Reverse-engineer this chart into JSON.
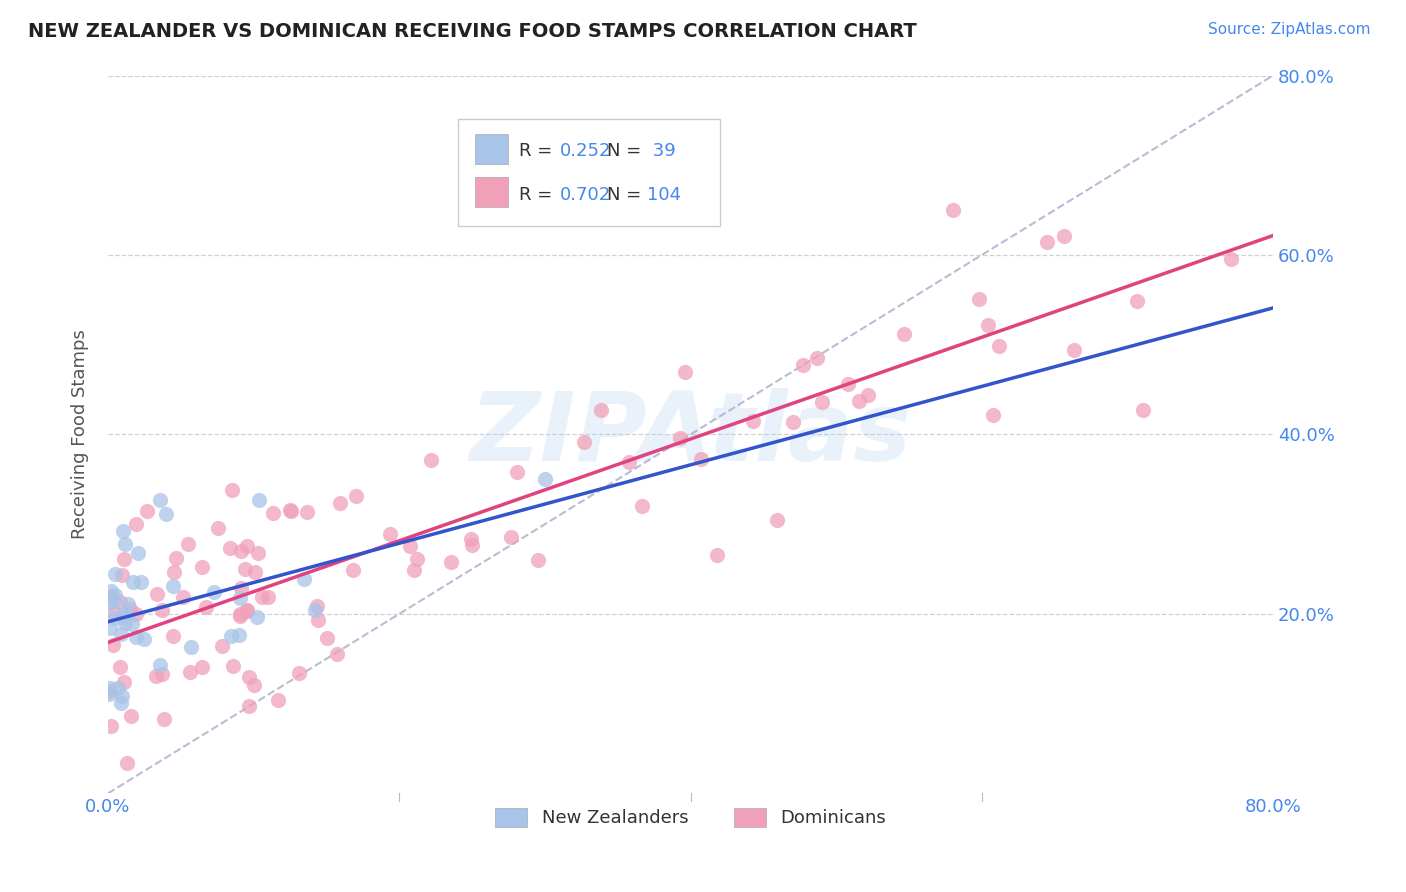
{
  "title": "NEW ZEALANDER VS DOMINICAN RECEIVING FOOD STAMPS CORRELATION CHART",
  "source_text": "Source: ZipAtlas.com",
  "ylabel": "Receiving Food Stamps",
  "legend_labels": [
    "New Zealanders",
    "Dominicans"
  ],
  "legend_r": [
    0.252,
    0.702
  ],
  "legend_n": [
    39,
    104
  ],
  "nz_color": "#a8c4e8",
  "dom_color": "#f0a0b8",
  "nz_line_color": "#3355cc",
  "dom_line_color": "#e04480",
  "ref_line_color": "#aaaacc",
  "background_color": "#ffffff",
  "grid_color": "#cccccc",
  "watermark_text": "ZIPAtlas",
  "xlim": [
    0.0,
    0.8
  ],
  "ylim": [
    0.0,
    0.8
  ],
  "blue_text_color": "#4488ee",
  "title_color": "#222222",
  "label_color": "#555555"
}
